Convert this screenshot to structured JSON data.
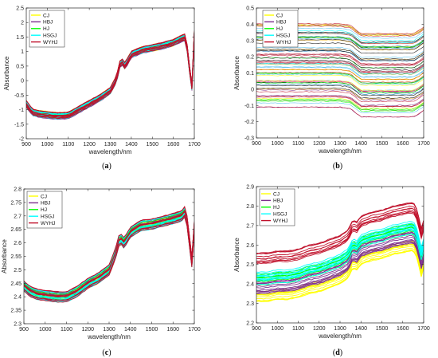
{
  "series_colors": {
    "CJ": "#ffff00",
    "HBJ": "#7e2f8e",
    "HJ": "#00ff00",
    "HSGJ": "#00ffff",
    "WYHJ": "#c0102a"
  },
  "chart_data": [
    {
      "type": "line",
      "caption": [
        "(",
        "a",
        ")"
      ],
      "xlabel": "wavelength/nm",
      "ylabel": "Absorbance",
      "xlim": [
        900,
        1700
      ],
      "ylim": [
        -2,
        2.5
      ],
      "xticks": [
        900,
        1000,
        1100,
        1200,
        1300,
        1400,
        1500,
        1600,
        1700
      ],
      "yticks": [
        -2,
        -1.5,
        -1,
        -0.5,
        0,
        0.5,
        1,
        1.5,
        2,
        2.5
      ],
      "ytick_labels": [
        "-2",
        "-1.5",
        "-1",
        "-0.5",
        "0",
        "0.5",
        "1",
        "1.5",
        "2",
        "2.5"
      ],
      "legend": [
        "CJ",
        "HBJ",
        "HJ",
        "HSGJ",
        "WYHJ"
      ],
      "legend_position": "top-left",
      "series_profile": {
        "x": [
          900,
          930,
          960,
          1000,
          1050,
          1100,
          1150,
          1200,
          1250,
          1300,
          1330,
          1350,
          1370,
          1400,
          1450,
          1500,
          1550,
          1600,
          1640,
          1660,
          1675,
          1690,
          1700
        ],
        "y": [
          -0.8,
          -1.1,
          -1.15,
          -1.18,
          -1.22,
          -1.2,
          -1.0,
          -0.8,
          -0.6,
          -0.35,
          0.05,
          0.7,
          0.5,
          0.9,
          1.05,
          1.12,
          1.2,
          1.3,
          1.45,
          1.5,
          0.5,
          -0.3,
          1.6
        ],
        "spread": 0.12
      }
    },
    {
      "type": "line",
      "caption": [
        "(",
        "b",
        ")"
      ],
      "xlabel": "wavelength/nm",
      "ylabel": "Absorbance",
      "xlim": [
        900,
        1700
      ],
      "ylim": [
        -0.3,
        0.5
      ],
      "xticks": [
        900,
        1000,
        1100,
        1200,
        1300,
        1400,
        1500,
        1600,
        1700
      ],
      "yticks": [
        -0.3,
        -0.2,
        -0.1,
        0,
        0.1,
        0.2,
        0.3,
        0.4,
        0.5
      ],
      "ytick_labels": [
        "-0.3",
        "-0.2",
        "-0.1",
        "0",
        "0.1",
        "0.2",
        "0.3",
        "0.4",
        "0.5"
      ],
      "legend": [
        "CJ",
        "HBJ",
        "HJ",
        "HSGJ",
        "WYHJ"
      ],
      "legend_position": "top-center",
      "series_profile": {
        "x": [
          900,
          1000,
          1100,
          1200,
          1300,
          1350,
          1400,
          1450,
          1500,
          1600,
          1650,
          1680,
          1700
        ],
        "y": [
          0.06,
          0.06,
          0.06,
          0.06,
          0.06,
          0.05,
          0.0,
          0.0,
          0.0,
          0.0,
          0.0,
          0.02,
          0.04
        ],
        "spread": 0.28
      }
    },
    {
      "type": "line",
      "caption": [
        "(",
        "c",
        ")"
      ],
      "xlabel": "wavelength/nm",
      "ylabel": "Absorbance",
      "xlim": [
        900,
        1700
      ],
      "ylim": [
        2.3,
        2.8
      ],
      "xticks": [
        900,
        1000,
        1100,
        1200,
        1300,
        1400,
        1500,
        1600,
        1700
      ],
      "yticks": [
        2.3,
        2.35,
        2.4,
        2.45,
        2.5,
        2.55,
        2.6,
        2.65,
        2.7,
        2.75,
        2.8
      ],
      "ytick_labels": [
        "2.3",
        "2.35",
        "2.4",
        "2.45",
        "2.5",
        "2.55",
        "2.6",
        "2.65",
        "2.7",
        "2.75",
        "2.8"
      ],
      "legend": [
        "CJ",
        "HBJ",
        "HJ",
        "HSGJ",
        "WYHJ"
      ],
      "legend_position": "top-left",
      "series_profile": {
        "x": [
          900,
          930,
          960,
          1000,
          1050,
          1100,
          1150,
          1200,
          1250,
          1300,
          1330,
          1350,
          1370,
          1400,
          1450,
          1500,
          1550,
          1600,
          1640,
          1660,
          1675,
          1690,
          1700
        ],
        "y": [
          2.44,
          2.42,
          2.41,
          2.405,
          2.4,
          2.4,
          2.42,
          2.45,
          2.47,
          2.5,
          2.56,
          2.62,
          2.6,
          2.64,
          2.665,
          2.67,
          2.68,
          2.69,
          2.7,
          2.72,
          2.62,
          2.52,
          2.66
        ],
        "spread": 0.02
      }
    },
    {
      "type": "line",
      "caption": [
        "(",
        "d",
        ")"
      ],
      "xlabel": "wavelength/nm",
      "ylabel": "Absorbance",
      "xlim": [
        900,
        1700
      ],
      "ylim": [
        2.2,
        2.9
      ],
      "xticks": [
        900,
        1000,
        1100,
        1200,
        1300,
        1400,
        1500,
        1600,
        1700
      ],
      "yticks": [
        2.2,
        2.3,
        2.4,
        2.5,
        2.6,
        2.7,
        2.8,
        2.9
      ],
      "ytick_labels": [
        "2.2",
        "2.3",
        "2.4",
        "2.5",
        "2.6",
        "2.7",
        "2.8",
        "2.9"
      ],
      "legend": [
        "CJ",
        "HBJ",
        "HJ",
        "HSGJ",
        "WYHJ"
      ],
      "legend_position": "top-left",
      "series_profile": {
        "x": [
          900,
          950,
          1000,
          1050,
          1100,
          1150,
          1200,
          1250,
          1300,
          1340,
          1360,
          1380,
          1400,
          1450,
          1500,
          1550,
          1600,
          1640,
          1660,
          1675,
          1690,
          1700
        ],
        "y": [
          2.43,
          2.43,
          2.44,
          2.44,
          2.45,
          2.47,
          2.48,
          2.5,
          2.52,
          2.55,
          2.6,
          2.59,
          2.62,
          2.64,
          2.65,
          2.67,
          2.68,
          2.69,
          2.68,
          2.62,
          2.55,
          2.6
        ],
        "group_offsets": {
          "CJ": -0.09,
          "HBJ": -0.045,
          "HSGJ": 0.0,
          "HJ": 0.0,
          "WYHJ": 0.1
        },
        "spread": 0.035
      }
    }
  ]
}
